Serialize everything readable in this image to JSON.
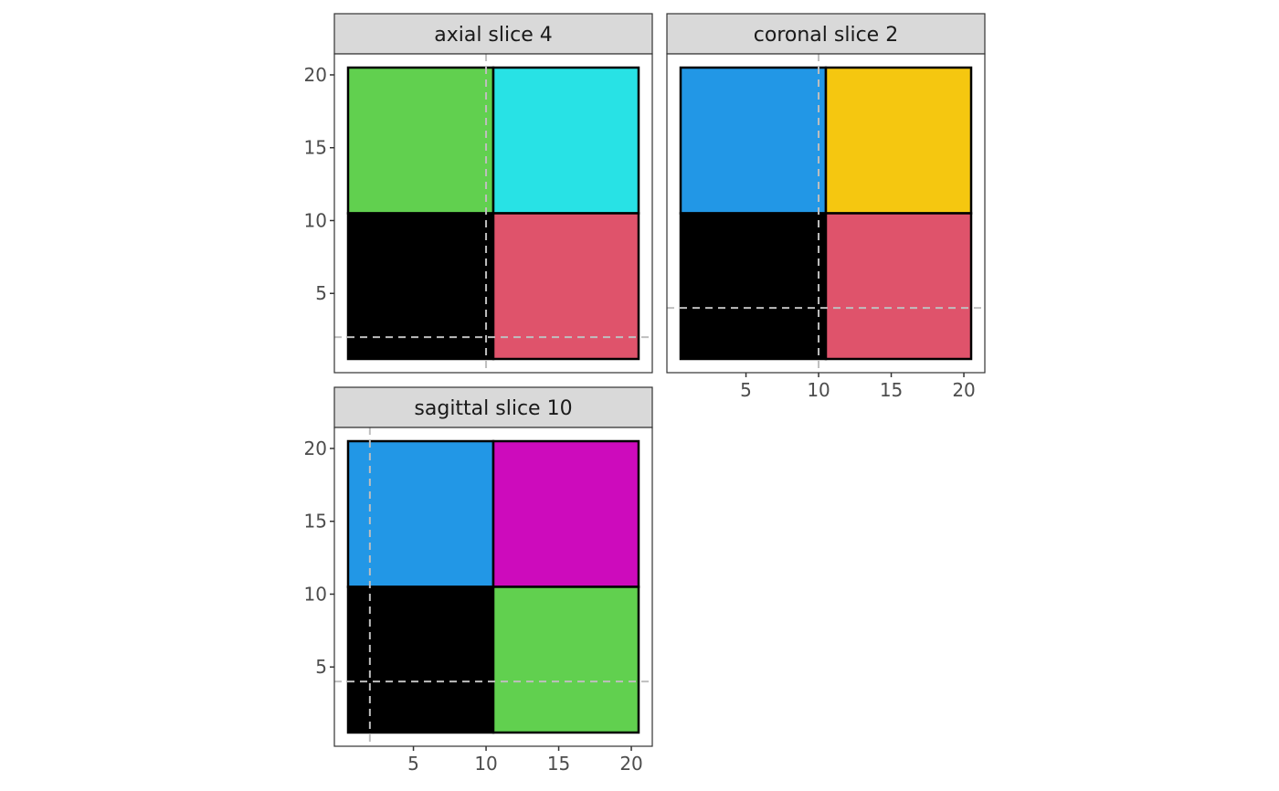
{
  "chart_data": [
    {
      "type": "heatmap",
      "title": "axial slice 4",
      "xlim": [
        0.5,
        20.5
      ],
      "ylim": [
        0.5,
        20.5
      ],
      "xticks": [],
      "yticks": [
        "5",
        "10",
        "15",
        "20"
      ],
      "show_x_axis": false,
      "show_y_axis": true,
      "regions": [
        {
          "x": [
            1,
            10
          ],
          "y": [
            11,
            20
          ],
          "color": "#61D04F",
          "dashed_right": true
        },
        {
          "x": [
            11,
            20
          ],
          "y": [
            11,
            20
          ],
          "color": "#28E2E5",
          "dashed_right": false
        },
        {
          "x": [
            1,
            10
          ],
          "y": [
            1,
            10
          ],
          "color": "#000000",
          "dashed_right": true
        },
        {
          "x": [
            11,
            20
          ],
          "y": [
            1,
            10
          ],
          "color": "#DF536B",
          "dashed_right": false
        }
      ],
      "crosshair": {
        "vline": 10,
        "hline": 2
      },
      "grid": false
    },
    {
      "type": "heatmap",
      "title": "coronal slice 2",
      "xlim": [
        0.5,
        20.5
      ],
      "ylim": [
        0.5,
        20.5
      ],
      "xticks": [
        "5",
        "10",
        "15",
        "20"
      ],
      "yticks": [],
      "show_x_axis": true,
      "show_y_axis": false,
      "regions": [
        {
          "x": [
            1,
            10
          ],
          "y": [
            11,
            20
          ],
          "color": "#2297E6",
          "dashed_right": true
        },
        {
          "x": [
            11,
            20
          ],
          "y": [
            11,
            20
          ],
          "color": "#F5C710",
          "dashed_right": false
        },
        {
          "x": [
            1,
            10
          ],
          "y": [
            1,
            10
          ],
          "color": "#000000",
          "dashed_right": true
        },
        {
          "x": [
            11,
            20
          ],
          "y": [
            1,
            10
          ],
          "color": "#DF536B",
          "dashed_right": false
        }
      ],
      "crosshair": {
        "vline": 10,
        "hline": 4
      },
      "grid": false
    },
    {
      "type": "heatmap",
      "title": "sagittal slice 10",
      "xlim": [
        0.5,
        20.5
      ],
      "ylim": [
        0.5,
        20.5
      ],
      "xticks": [
        "5",
        "10",
        "15",
        "20"
      ],
      "yticks": [
        "5",
        "10",
        "15",
        "20"
      ],
      "show_x_axis": true,
      "show_y_axis": true,
      "regions": [
        {
          "x": [
            1,
            10
          ],
          "y": [
            11,
            20
          ],
          "color": "#2297E6",
          "dashed_right": false
        },
        {
          "x": [
            11,
            20
          ],
          "y": [
            11,
            20
          ],
          "color": "#CD0BBC",
          "dashed_right": false
        },
        {
          "x": [
            1,
            10
          ],
          "y": [
            1,
            10
          ],
          "color": "#000000",
          "dashed_right": false
        },
        {
          "x": [
            11,
            20
          ],
          "y": [
            1,
            10
          ],
          "color": "#61D04F",
          "dashed_right": false
        }
      ],
      "crosshair": {
        "vline": 2,
        "hline": 4
      },
      "grid": false
    }
  ],
  "colors": {
    "strip_fill": "#D9D9D9",
    "panel_border": "#333333",
    "crosshair": "#BEBEBE",
    "tick_text": "#4D4D4D"
  }
}
